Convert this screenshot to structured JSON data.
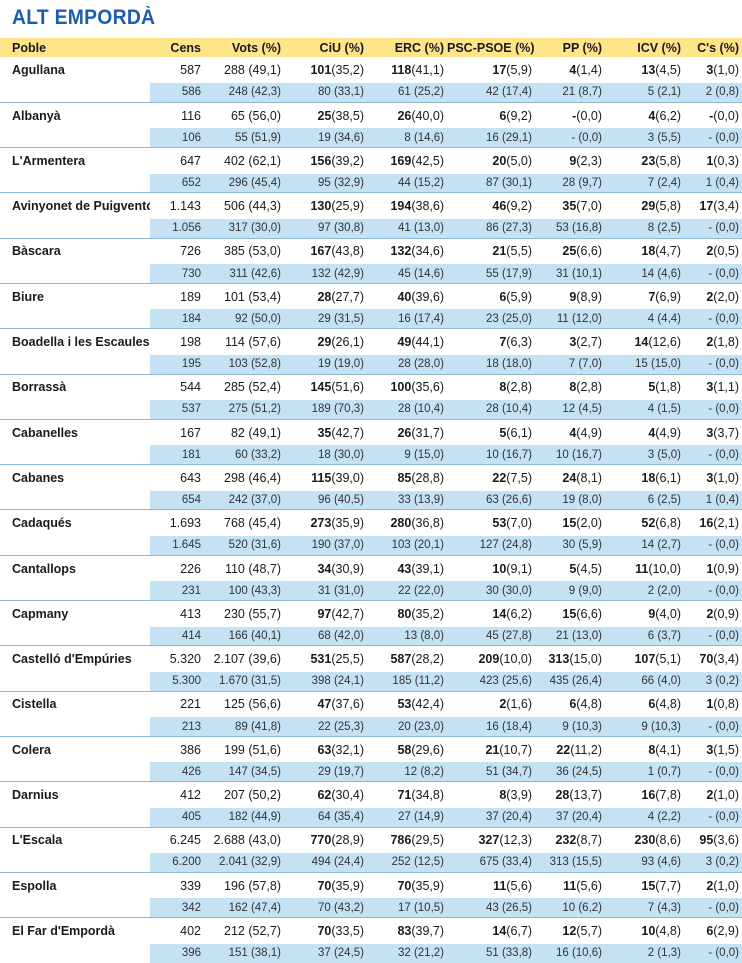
{
  "title": "ALT EMPORDÀ",
  "headers": [
    "Poble",
    "Cens",
    "Vots (%)",
    "CiU (%)",
    "ERC (%)",
    "PSC-PSOE (%)",
    "PP (%)",
    "ICV (%)",
    "C's (%)"
  ],
  "rows": [
    {
      "name": "Agullana",
      "cur": [
        "587",
        "288 (49,1)",
        "101|(35,2)",
        "118|(41,1)",
        "17|(5,9)",
        "4|(1,4)",
        "13|(4,5)",
        "3|(1,0)"
      ],
      "prev": [
        "586",
        "248 (42,3)",
        "80 (33,1)",
        "61 (25,2)",
        "42 (17,4)",
        "21 (8,7)",
        "5 (2,1)",
        "2 (0,8)"
      ]
    },
    {
      "name": "Albanyà",
      "cur": [
        "116",
        "65 (56,0)",
        "25|(38,5)",
        "26|(40,0)",
        "6|(9,2)",
        "-|(0,0)",
        "4|(6,2)",
        "-|(0,0)"
      ],
      "prev": [
        "106",
        "55 (51,9)",
        "19 (34,6)",
        "8 (14,6)",
        "16 (29,1)",
        "- (0,0)",
        "3 (5,5)",
        "- (0,0)"
      ]
    },
    {
      "name": "L'Armentera",
      "cur": [
        "647",
        "402 (62,1)",
        "156|(39,2)",
        "169|(42,5)",
        "20|(5,0)",
        "9|(2,3)",
        "23|(5,8)",
        "1|(0,3)"
      ],
      "prev": [
        "652",
        "296 (45,4)",
        "95 (32,9)",
        "44 (15,2)",
        "87 (30,1)",
        "28 (9,7)",
        "7 (2,4)",
        "1 (0,4)"
      ]
    },
    {
      "name": "Avinyonet de Puigventós",
      "cur": [
        "1.143",
        "506 (44,3)",
        "130|(25,9)",
        "194|(38,6)",
        "46|(9,2)",
        "35|(7,0)",
        "29|(5,8)",
        "17|(3,4)"
      ],
      "prev": [
        "1.056",
        "317 (30,0)",
        "97 (30,8)",
        "41 (13,0)",
        "86 (27,3)",
        "53 (16,8)",
        "8 (2,5)",
        "- (0,0)"
      ]
    },
    {
      "name": "Bàscara",
      "cur": [
        "726",
        "385 (53,0)",
        "167|(43,8)",
        "132|(34,6)",
        "21|(5,5)",
        "25|(6,6)",
        "18|(4,7)",
        "2|(0,5)"
      ],
      "prev": [
        "730",
        "311 (42,6)",
        "132 (42,9)",
        "45 (14,6)",
        "55 (17,9)",
        "31 (10,1)",
        "14 (4,6)",
        "- (0,0)"
      ]
    },
    {
      "name": "Biure",
      "cur": [
        "189",
        "101 (53,4)",
        "28|(27,7)",
        "40|(39,6)",
        "6|(5,9)",
        "9|(8,9)",
        "7|(6,9)",
        "2|(2,0)"
      ],
      "prev": [
        "184",
        "92 (50,0)",
        "29 (31,5)",
        "16 (17,4)",
        "23 (25,0)",
        "11 (12,0)",
        "4 (4,4)",
        "- (0,0)"
      ]
    },
    {
      "name": "Boadella i les Escaules",
      "cur": [
        "198",
        "114 (57,6)",
        "29|(26,1)",
        "49|(44,1)",
        "7|(6,3)",
        "3|(2,7)",
        "14|(12,6)",
        "2|(1,8)"
      ],
      "prev": [
        "195",
        "103 (52,8)",
        "19 (19,0)",
        "28 (28,0)",
        "18 (18,0)",
        "7 (7,0)",
        "15 (15,0)",
        "- (0,0)"
      ]
    },
    {
      "name": "Borrassà",
      "cur": [
        "544",
        "285 (52,4)",
        "145|(51,6)",
        "100|(35,6)",
        "8|(2,8)",
        "8|(2,8)",
        "5|(1,8)",
        "3|(1,1)"
      ],
      "prev": [
        "537",
        "275 (51,2)",
        "189 (70,3)",
        "28 (10,4)",
        "28 (10,4)",
        "12 (4,5)",
        "4 (1,5)",
        "- (0,0)"
      ]
    },
    {
      "name": "Cabanelles",
      "cur": [
        "167",
        "82 (49,1)",
        "35|(42,7)",
        "26|(31,7)",
        "5|(6,1)",
        "4|(4,9)",
        "4|(4,9)",
        "3|(3,7)"
      ],
      "prev": [
        "181",
        "60 (33,2)",
        "18 (30,0)",
        "9 (15,0)",
        "10 (16,7)",
        "10 (16,7)",
        "3 (5,0)",
        "- (0,0)"
      ]
    },
    {
      "name": "Cabanes",
      "cur": [
        "643",
        "298 (46,4)",
        "115|(39,0)",
        "85|(28,8)",
        "22|(7,5)",
        "24|(8,1)",
        "18|(6,1)",
        "3|(1,0)"
      ],
      "prev": [
        "654",
        "242 (37,0)",
        "96 (40,5)",
        "33 (13,9)",
        "63 (26,6)",
        "19 (8,0)",
        "6 (2,5)",
        "1 (0,4)"
      ]
    },
    {
      "name": "Cadaqués",
      "cur": [
        "1.693",
        "768 (45,4)",
        "273|(35,9)",
        "280|(36,8)",
        "53|(7,0)",
        "15|(2,0)",
        "52|(6,8)",
        "16|(2,1)"
      ],
      "prev": [
        "1.645",
        "520 (31,6)",
        "190 (37,0)",
        "103 (20,1)",
        "127 (24,8)",
        "30 (5,9)",
        "14 (2,7)",
        "- (0,0)"
      ]
    },
    {
      "name": "Cantallops",
      "cur": [
        "226",
        "110 (48,7)",
        "34|(30,9)",
        "43|(39,1)",
        "10|(9,1)",
        "5|(4,5)",
        "11|(10,0)",
        "1|(0,9)"
      ],
      "prev": [
        "231",
        "100 (43,3)",
        "31 (31,0)",
        "22 (22,0)",
        "30 (30,0)",
        "9 (9,0)",
        "2 (2,0)",
        "- (0,0)"
      ]
    },
    {
      "name": "Capmany",
      "cur": [
        "413",
        "230 (55,7)",
        "97|(42,7)",
        "80|(35,2)",
        "14|(6,2)",
        "15|(6,6)",
        "9|(4,0)",
        "2|(0,9)"
      ],
      "prev": [
        "414",
        "166 (40,1)",
        "68 (42,0)",
        "13 (8,0)",
        "45 (27,8)",
        "21 (13,0)",
        "6 (3,7)",
        "- (0,0)"
      ]
    },
    {
      "name": "Castelló d'Empúries",
      "cur": [
        "5.320",
        "2.107 (39,6)",
        "531|(25,5)",
        "587|(28,2)",
        "209|(10,0)",
        "313|(15,0)",
        "107|(5,1)",
        "70|(3,4)"
      ],
      "prev": [
        "5.300",
        "1.670 (31,5)",
        "398 (24,1)",
        "185 (11,2)",
        "423 (25,6)",
        "435 (26,4)",
        "66 (4,0)",
        "3 (0,2)"
      ]
    },
    {
      "name": "Cistella",
      "cur": [
        "221",
        "125 (56,6)",
        "47|(37,6)",
        "53|(42,4)",
        "2|(1,6)",
        "6|(4,8)",
        "6|(4,8)",
        "1|(0,8)"
      ],
      "prev": [
        "213",
        "89 (41,8)",
        "22 (25,3)",
        "20 (23,0)",
        "16 (18,4)",
        "9 (10,3)",
        "9 (10,3)",
        "- (0,0)"
      ]
    },
    {
      "name": "Colera",
      "cur": [
        "386",
        "199 (51,6)",
        "63|(32,1)",
        "58|(29,6)",
        "21|(10,7)",
        "22|(11,2)",
        "8|(4,1)",
        "3|(1,5)"
      ],
      "prev": [
        "426",
        "147 (34,5)",
        "29 (19,7)",
        "12 (8,2)",
        "51 (34,7)",
        "36 (24,5)",
        "1 (0,7)",
        "- (0,0)"
      ]
    },
    {
      "name": "Darnius",
      "cur": [
        "412",
        "207 (50,2)",
        "62|(30,4)",
        "71|(34,8)",
        "8|(3,9)",
        "28|(13,7)",
        "16|(7,8)",
        "2|(1,0)"
      ],
      "prev": [
        "405",
        "182 (44,9)",
        "64 (35,4)",
        "27 (14,9)",
        "37 (20,4)",
        "37 (20,4)",
        "4 (2,2)",
        "- (0,0)"
      ]
    },
    {
      "name": "L'Escala",
      "cur": [
        "6.245",
        "2.688 (43,0)",
        "770|(28,9)",
        "786|(29,5)",
        "327|(12,3)",
        "232|(8,7)",
        "230|(8,6)",
        "95|(3,6)"
      ],
      "prev": [
        "6.200",
        "2.041 (32,9)",
        "494 (24,4)",
        "252 (12,5)",
        "675 (33,4)",
        "313 (15,5)",
        "93 (4,6)",
        "3 (0,2)"
      ]
    },
    {
      "name": "Espolla",
      "cur": [
        "339",
        "196 (57,8)",
        "70|(35,9)",
        "70|(35,9)",
        "11|(5,6)",
        "11|(5,6)",
        "15|(7,7)",
        "2|(1,0)"
      ],
      "prev": [
        "342",
        "162 (47,4)",
        "70 (43,2)",
        "17 (10,5)",
        "43 (26,5)",
        "10 (6,2)",
        "7 (4,3)",
        "- (0,0)"
      ]
    },
    {
      "name": "El Far d'Empordà",
      "cur": [
        "402",
        "212 (52,7)",
        "70|(33,5)",
        "83|(39,7)",
        "14|(6,7)",
        "12|(5,7)",
        "10|(4,8)",
        "6|(2,9)"
      ],
      "prev": [
        "396",
        "151 (38,1)",
        "37 (24,5)",
        "32 (21,2)",
        "51 (33,8)",
        "16 (10,6)",
        "2 (1,3)",
        "- (0,0)"
      ]
    }
  ]
}
